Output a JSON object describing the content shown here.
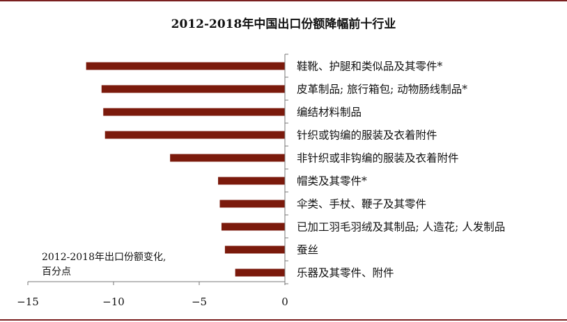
{
  "chart_data": {
    "type": "bar",
    "orientation": "horizontal",
    "title": "2012-2018年中国出口份额降幅前十行业",
    "annotation": [
      "2012-2018年出口份额变化,",
      "百分点"
    ],
    "categories": [
      "鞋靴、护腿和类似品及其零件*",
      "皮革制品; 旅行箱包; 动物肠线制品*",
      "编结材料制品",
      "针织或钩编的服装及衣着附件",
      "非针织或非钩编的服装及衣着附件",
      "帽类及其零件*",
      "伞类、手杖、鞭子及其零件",
      "已加工羽毛羽绒及其制品; 人造花; 人发制品",
      "蚕丝",
      "乐器及其零件、附件"
    ],
    "values": [
      -11.6,
      -10.7,
      -10.6,
      -10.5,
      -6.7,
      -3.9,
      -3.8,
      -3.7,
      -3.5,
      -2.9
    ],
    "xlim": [
      -15,
      0
    ],
    "xticks": [
      -15,
      -10,
      -5,
      0
    ],
    "xtick_labels": [
      "−15",
      "−10",
      "−5",
      "0"
    ],
    "bar_color": "#7b1a0c",
    "grid": false
  }
}
